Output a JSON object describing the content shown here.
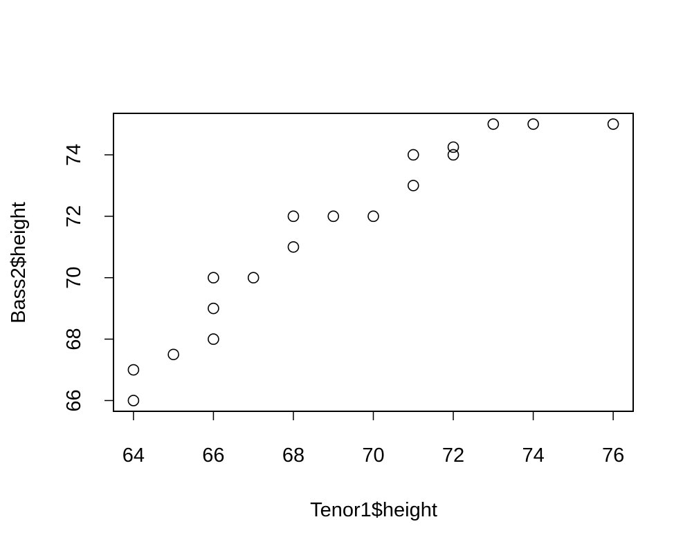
{
  "chart_data": {
    "type": "scatter",
    "xlabel": "Tenor1$height",
    "ylabel": "Bass2$height",
    "xlim": [
      63.5,
      76.5
    ],
    "ylim": [
      65.65,
      75.35
    ],
    "xticks": [
      64,
      66,
      68,
      70,
      72,
      74,
      76
    ],
    "yticks": [
      66,
      68,
      70,
      72,
      74
    ],
    "grid": false,
    "points": [
      {
        "x": 64,
        "y": 66
      },
      {
        "x": 64,
        "y": 67
      },
      {
        "x": 65,
        "y": 67.5
      },
      {
        "x": 66,
        "y": 68
      },
      {
        "x": 66,
        "y": 69
      },
      {
        "x": 66,
        "y": 70
      },
      {
        "x": 67,
        "y": 70
      },
      {
        "x": 68,
        "y": 71
      },
      {
        "x": 68,
        "y": 72
      },
      {
        "x": 69,
        "y": 72
      },
      {
        "x": 70,
        "y": 72
      },
      {
        "x": 71,
        "y": 73
      },
      {
        "x": 71,
        "y": 74
      },
      {
        "x": 72,
        "y": 74
      },
      {
        "x": 72,
        "y": 74.25
      },
      {
        "x": 73,
        "y": 75
      },
      {
        "x": 74,
        "y": 75
      },
      {
        "x": 76,
        "y": 75
      }
    ]
  }
}
